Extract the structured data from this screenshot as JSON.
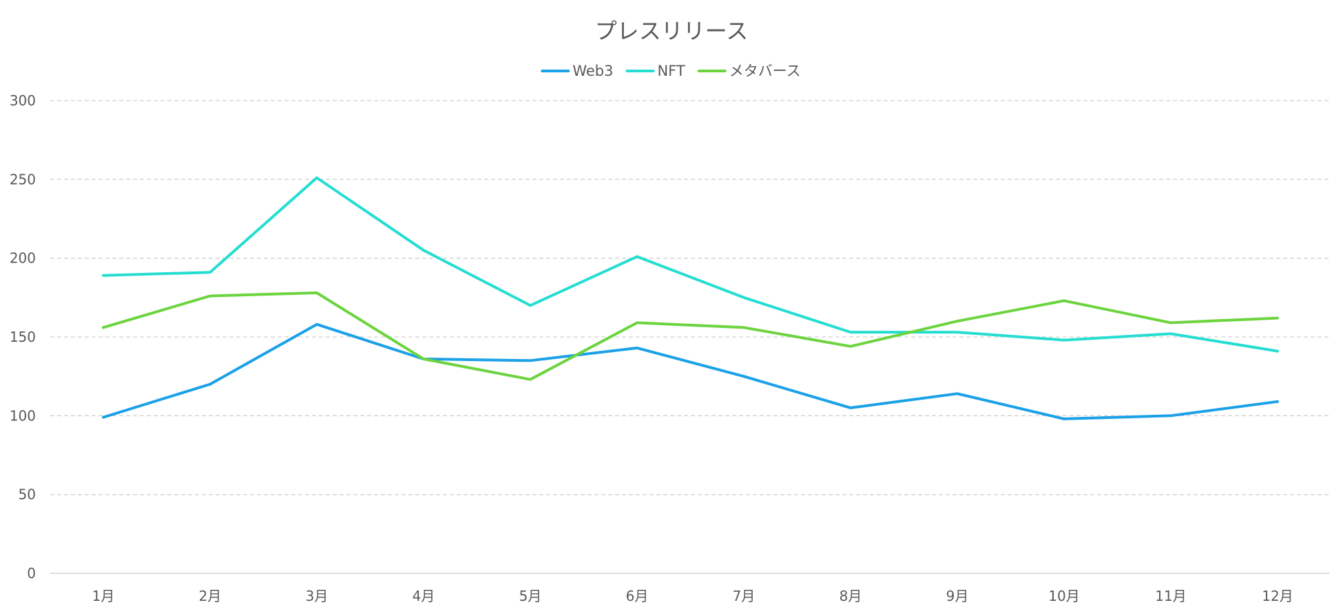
{
  "chart_data": {
    "type": "line",
    "title": "プレスリリース",
    "categories": [
      "1月",
      "2月",
      "3月",
      "4月",
      "5月",
      "6月",
      "7月",
      "8月",
      "9月",
      "10月",
      "11月",
      "12月"
    ],
    "series": [
      {
        "name": "Web3",
        "color": "#1ba1e8",
        "values": [
          99,
          120,
          158,
          136,
          135,
          143,
          125,
          105,
          114,
          98,
          100,
          109
        ]
      },
      {
        "name": "NFT",
        "color": "#25ddd1",
        "values": [
          189,
          191,
          251,
          205,
          170,
          201,
          175,
          153,
          153,
          148,
          152,
          141
        ]
      },
      {
        "name": "メタバース",
        "color": "#6cd43f",
        "values": [
          156,
          176,
          178,
          136,
          123,
          159,
          156,
          144,
          160,
          173,
          159,
          162
        ]
      }
    ],
    "ylim": [
      0,
      300
    ],
    "yticks": [
      0,
      50,
      100,
      150,
      200,
      250,
      300
    ],
    "grid": true,
    "legend_position": "top"
  }
}
